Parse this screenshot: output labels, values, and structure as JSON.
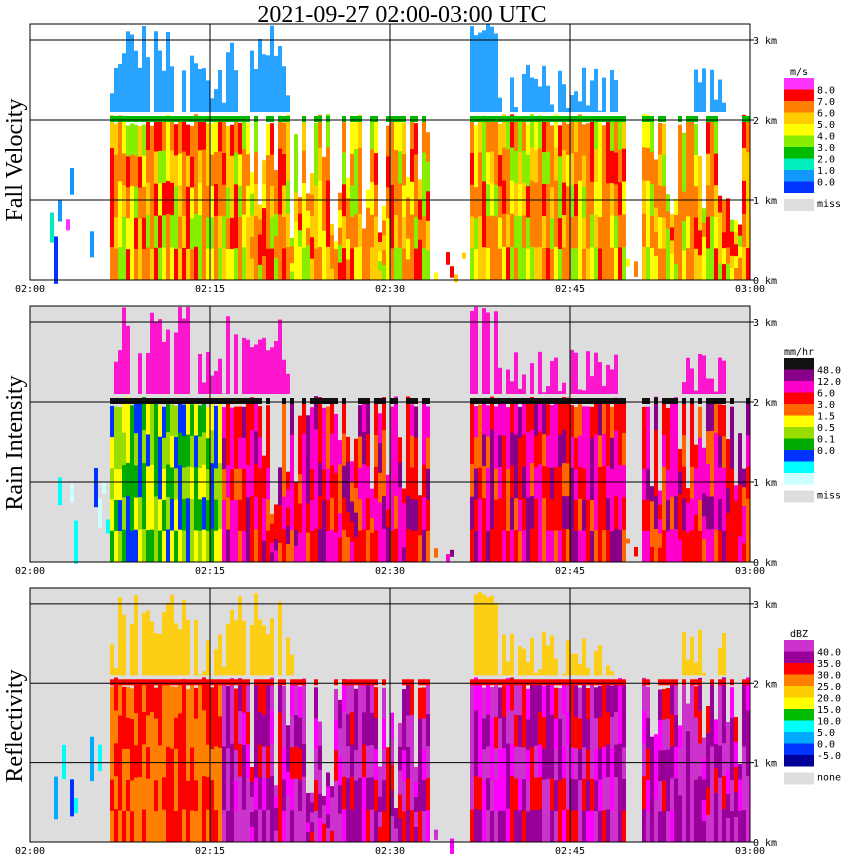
{
  "title": "2021-09-27   02:00-03:00 UTC",
  "chart_data": [
    {
      "type": "heatmap",
      "name": "fall-velocity",
      "ylabel": "Fall Velocity",
      "unit": "m/s",
      "levels": [
        "8.0",
        "7.0",
        "6.0",
        "5.0",
        "4.0",
        "3.0",
        "2.0",
        "1.0",
        "0.0"
      ],
      "colors": [
        "#ff33ff",
        "#ff0000",
        "#ff7f00",
        "#ffcc00",
        "#ffff00",
        "#88ee00",
        "#00bb00",
        "#00eebb",
        "#1199ff",
        "#0033ff"
      ],
      "missing_label": "miss",
      "missing_color": "#dddddd",
      "background": "#ffffff",
      "top_color": "#1199ff",
      "body_colors": [
        "#ff7f00",
        "#ffcc00",
        "#ff0000",
        "#ffff00",
        "#ff7f00",
        "#88ee00"
      ],
      "band_color": "#00bb00",
      "rain_colors": [
        "#1199ff",
        "#0033ff",
        "#00eebb",
        "#ff33ff"
      ]
    },
    {
      "type": "heatmap",
      "name": "rain-intensity",
      "ylabel": "Rain Intensity",
      "unit": "mm/hr",
      "levels": [
        "48.0",
        "12.0",
        "6.0",
        "3.0",
        "1.5",
        "0.5",
        "0.1",
        "0.0"
      ],
      "colors": [
        "#111111",
        "#880088",
        "#ff00cc",
        "#ff0000",
        "#ff6600",
        "#ffff00",
        "#99dd00",
        "#00aa00",
        "#0033ff",
        "#00ffff",
        "#ccffff"
      ],
      "missing_label": "miss",
      "missing_color": "#dddddd",
      "background": "#dddddd",
      "top_color": "#ff00cc",
      "body_colors": [
        "#ff0000",
        "#ff00cc",
        "#880088",
        "#ff0000",
        "#ff6600",
        "#ff00cc"
      ],
      "band_color": "#111111",
      "early_colors": [
        "#0033ff",
        "#00aa00",
        "#99dd00",
        "#ffff00"
      ],
      "rain_colors": [
        "#00ffff",
        "#ccffff",
        "#0033ff"
      ]
    },
    {
      "type": "heatmap",
      "name": "reflectivity",
      "ylabel": "Reflectivity",
      "unit": "dBZ",
      "levels": [
        "40.0",
        "35.0",
        "30.0",
        "25.0",
        "20.0",
        "15.0",
        "10.0",
        "5.0",
        "0.0",
        "-5.0"
      ],
      "colors": [
        "#cc33cc",
        "#990099",
        "#ff0000",
        "#ff7f00",
        "#ffcc00",
        "#ffff00",
        "#00bb00",
        "#00ffff",
        "#00aaff",
        "#0033ff",
        "#000099"
      ],
      "missing_label": "none",
      "missing_color": "#dddddd",
      "background": "#dddddd",
      "top_color": "#ffcc00",
      "body_colors": [
        "#cc33cc",
        "#990099",
        "#cc33cc",
        "#ff00ff",
        "#990099",
        "#ff0000"
      ],
      "band_color": "#ff0000",
      "early_colors": [
        "#ff0000",
        "#ff7f00",
        "#ff0000",
        "#ff7f00"
      ],
      "rain_colors": [
        "#00aaff",
        "#0033ff",
        "#00ffff"
      ]
    }
  ],
  "x_axis": {
    "ticks": [
      "02:00",
      "02:15",
      "02:30",
      "02:45",
      "03:00"
    ],
    "minutes": [
      0,
      15,
      30,
      45,
      60
    ]
  },
  "y_axis": {
    "ticks": [
      "0 km",
      "1 km",
      "2 km",
      "3 km"
    ],
    "km": [
      0,
      1,
      2,
      3
    ],
    "ylim": [
      0,
      3.2
    ]
  }
}
